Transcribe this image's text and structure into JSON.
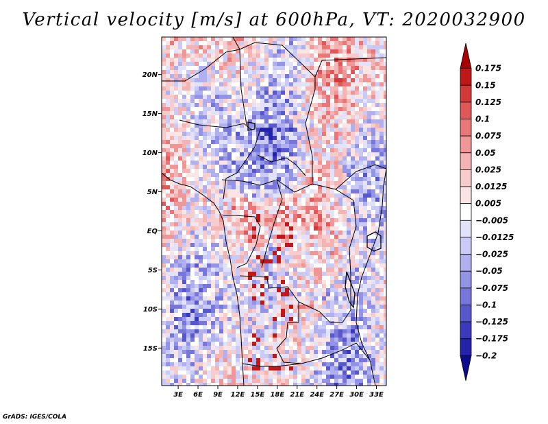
{
  "title": "Vertical velocity [m/s] at 600hPa, VT: 2020032900",
  "credit": "GrADS: IGES/COLA",
  "map": {
    "lat_labels": [
      "20N",
      "15N",
      "10N",
      "5N",
      "EQ",
      "5S",
      "10S",
      "15S"
    ],
    "lon_labels": [
      "3E",
      "6E",
      "9E",
      "12E",
      "15E",
      "18E",
      "21E",
      "24E",
      "27E",
      "30E",
      "33E"
    ],
    "lat_values": [
      20,
      15,
      10,
      5,
      0,
      -5,
      -10,
      -15
    ],
    "lon_values": [
      3,
      6,
      9,
      12,
      15,
      18,
      21,
      24,
      27,
      30,
      33
    ],
    "extent": {
      "lon_min": 0.5,
      "lon_max": 34.5,
      "lat_min": -19.8,
      "lat_max": 24.8
    }
  },
  "colorbar": {
    "labels": [
      "0.175",
      "0.15",
      "0.125",
      "0.1",
      "0.075",
      "0.05",
      "0.025",
      "0.0125",
      "0.005",
      "−0.005",
      "−0.0125",
      "−0.025",
      "−0.05",
      "−0.075",
      "−0.1",
      "−0.125",
      "−0.175",
      "−0.2"
    ],
    "colors": [
      "#a80000",
      "#bf1818",
      "#d23a3a",
      "#e05858",
      "#e97777",
      "#ef9696",
      "#f4b4b4",
      "#f8cccc",
      "#fbe4e4",
      "#ffffff",
      "#e2e2fb",
      "#cacaf6",
      "#b0b0ef",
      "#9494e6",
      "#7676db",
      "#5858cd",
      "#3a3abd",
      "#2222ab",
      "#0c0c8e"
    ]
  }
}
